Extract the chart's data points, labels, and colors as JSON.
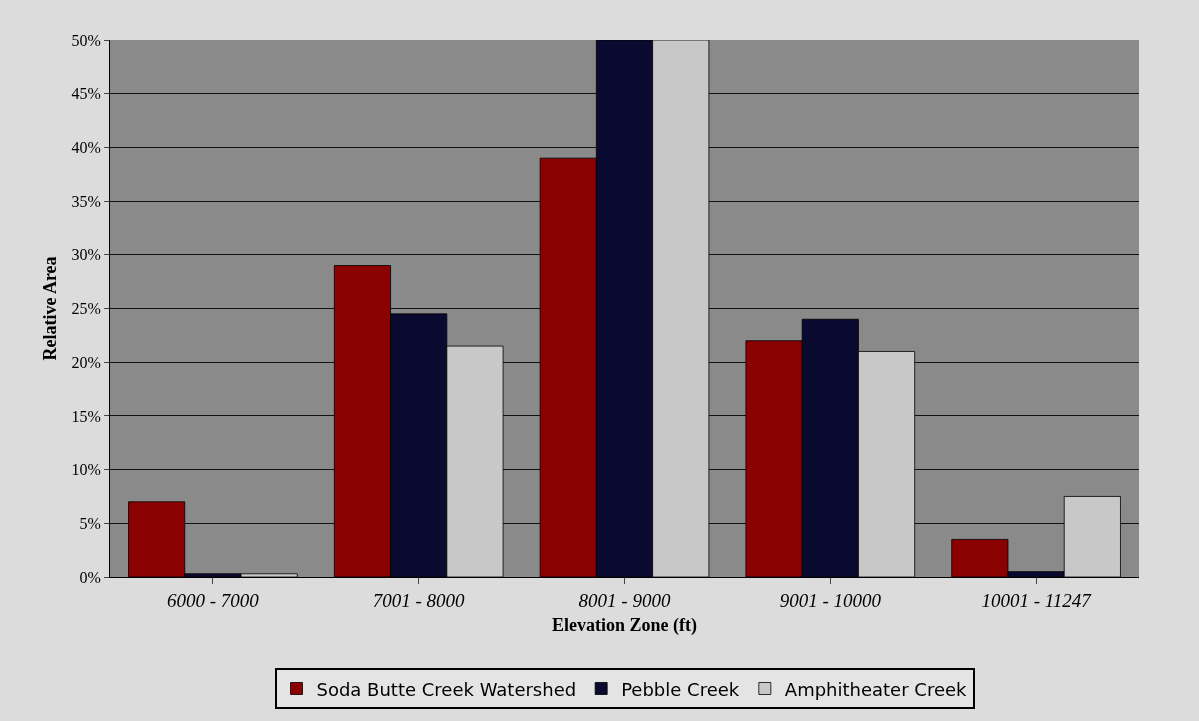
{
  "chart_data": {
    "type": "bar",
    "xlabel": "Elevation Zone (ft)",
    "ylabel": "Relative Area",
    "categories": [
      "6000 - 7000",
      "7001 - 8000",
      "8001 - 9000",
      "9001 - 10000",
      "10001 - 11247"
    ],
    "series": [
      {
        "name": "Soda Butte Creek Watershed",
        "color": "#8b0000",
        "values": [
          7,
          29,
          39,
          22,
          3.5
        ]
      },
      {
        "name": "Pebble Creek",
        "color": "#0a0a30",
        "values": [
          0.3,
          24.5,
          50,
          24,
          0.5
        ]
      },
      {
        "name": "Amphitheater Creek",
        "color": "#c8c8c8",
        "values": [
          0.3,
          21.5,
          50,
          21,
          7.5
        ]
      }
    ],
    "ylim": [
      0,
      50
    ],
    "yticks": [
      {
        "value": 0,
        "label": "0%"
      },
      {
        "value": 5,
        "label": "5%"
      },
      {
        "value": 10,
        "label": "10%"
      },
      {
        "value": 15,
        "label": "15%"
      },
      {
        "value": 20,
        "label": "20%"
      },
      {
        "value": 25,
        "label": "25%"
      },
      {
        "value": 30,
        "label": "30%"
      },
      {
        "value": 35,
        "label": "35%"
      },
      {
        "value": 40,
        "label": "40%"
      },
      {
        "value": 45,
        "label": "45%"
      },
      {
        "value": 50,
        "label": "50%"
      }
    ],
    "grid": "y",
    "legend": "bottom"
  }
}
